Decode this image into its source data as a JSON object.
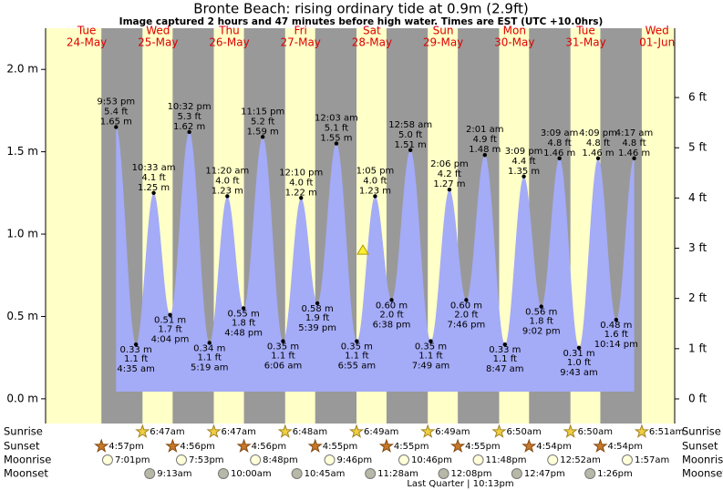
{
  "chart_data": {
    "type": "tide",
    "title": "Bronte Beach: rising ordinary tide at 0.9m (2.9ft)",
    "subtitle": "Image captured 2 hours and 47 minutes before high water. Times are EST (UTC +10.0hrs)",
    "days": [
      {
        "dow": "Tue",
        "date": "24-May",
        "sunset": "4:57pm",
        "moonrise": "7:01pm"
      },
      {
        "dow": "Wed",
        "date": "25-May",
        "sunrise": "6:47am",
        "sunset": "4:56pm",
        "moonrise": "7:53pm",
        "moonset": "9:13am"
      },
      {
        "dow": "Thu",
        "date": "26-May",
        "sunrise": "6:47am",
        "sunset": "4:56pm",
        "moonrise": "8:48pm",
        "moonset": "10:00am"
      },
      {
        "dow": "Fri",
        "date": "27-May",
        "sunrise": "6:48am",
        "sunset": "4:55pm",
        "moonrise": "9:46pm",
        "moonset": "10:45am"
      },
      {
        "dow": "Sat",
        "date": "28-May",
        "sunrise": "6:49am",
        "sunset": "4:55pm",
        "moonrise": "10:46pm",
        "moonset": "11:28am"
      },
      {
        "dow": "Sun",
        "date": "29-May",
        "sunrise": "6:49am",
        "sunset": "4:55pm",
        "moonrise": "11:48pm",
        "moonset": "12:08pm"
      },
      {
        "dow": "Mon",
        "date": "30-May",
        "sunrise": "6:50am",
        "sunset": "4:54pm",
        "moonset": "12:47pm"
      },
      {
        "dow": "Tue",
        "date": "31-May",
        "sunrise": "6:50am",
        "sunset": "4:54pm",
        "moonrise": "12:52am",
        "moonset": "1:26pm"
      },
      {
        "dow": "Wed",
        "date": "01-Jun",
        "sunrise": "6:51am",
        "moonrise": "1:57am"
      }
    ],
    "tide_times": [
      "9:53 pm",
      "4:35 am",
      "10:33 am",
      "4:04 pm",
      "10:32 pm",
      "5:19 am",
      "11:20 am",
      "4:48 pm",
      "11:15 pm",
      "6:06 am",
      "12:10 pm",
      "5:39 pm",
      "12:03 am",
      "6:55 am",
      "1:05 pm",
      "6:38 pm",
      "12:58 am",
      "7:49 am",
      "2:06 pm",
      "7:46 pm",
      "2:01 am",
      "8:47 am",
      "3:09 pm",
      "9:02 pm",
      "3:09 am",
      "9:43 am",
      "4:09 pm",
      "10:14 pm",
      "4:17 am"
    ],
    "values": [
      1.65,
      0.33,
      1.25,
      0.51,
      1.62,
      0.34,
      1.23,
      0.55,
      1.59,
      0.35,
      1.22,
      0.58,
      1.55,
      0.35,
      1.23,
      0.6,
      1.51,
      0.35,
      1.27,
      0.6,
      1.48,
      0.33,
      1.35,
      0.56,
      1.46,
      0.31,
      1.46,
      0.48,
      1.46
    ],
    "value_labels": [
      "1.65 m",
      "0.33 m",
      "1.25 m",
      "0.51 m",
      "1.62 m",
      "0.34 m",
      "1.23 m",
      "0.55 m",
      "1.59 m",
      "0.35 m",
      "1.22 m",
      "0.58 m",
      "1.55 m",
      "0.35 m",
      "1.23 m",
      "0.60 m",
      "1.51 m",
      "0.35 m",
      "1.27 m",
      "0.60 m",
      "1.48 m",
      "0.33 m",
      "1.35 m",
      "0.56 m",
      "1.46 m",
      "0.31 m",
      "1.46 m",
      "0.48 m",
      "1.46 m"
    ],
    "ft_labels": [
      "5.4 ft",
      "1.1 ft",
      "4.1 ft",
      "1.7 ft",
      "5.3 ft",
      "1.1 ft",
      "4.0 ft",
      "1.8 ft",
      "5.2 ft",
      "1.1 ft",
      "4.0 ft",
      "1.9 ft",
      "5.1 ft",
      "1.1 ft",
      "4.0 ft",
      "2.0 ft",
      "5.0 ft",
      "1.1 ft",
      "4.2 ft",
      "2.0 ft",
      "4.9 ft",
      "1.1 ft",
      "4.4 ft",
      "1.8 ft",
      "4.8 ft",
      "1.0 ft",
      "4.8 ft",
      "1.6 ft",
      "4.8 ft"
    ],
    "ylim": [
      -0.15,
      2.25
    ],
    "yticks": [
      {
        "value": 0,
        "label": "0.0 m"
      },
      {
        "value": 0.5,
        "label": "0.5 m"
      },
      {
        "value": 1,
        "label": "1.0 m"
      },
      {
        "value": 1.5,
        "label": "1.5 m"
      },
      {
        "value": 2,
        "label": "2.0 m"
      }
    ],
    "y2lim": [
      -0.49,
      7.38
    ],
    "y2ticks": [
      {
        "value": 0,
        "label": "0 ft"
      },
      {
        "value": 1,
        "label": "1 ft"
      },
      {
        "value": 2,
        "label": "2 ft"
      },
      {
        "value": 3,
        "label": "3 ft"
      },
      {
        "value": 4,
        "label": "4 ft"
      },
      {
        "value": 5,
        "label": "5 ft"
      },
      {
        "value": 6,
        "label": "6 ft"
      }
    ],
    "row_labels": [
      "Sunrise",
      "Sunset",
      "Moonrise",
      "Moonset"
    ],
    "current_level": 0.9,
    "moon_phase": "Last Quarter | 10:13pm",
    "colors": {
      "day": "#ffffc8",
      "night": "#999999",
      "tide": "#a4abf7",
      "date": "#dd0000"
    }
  }
}
